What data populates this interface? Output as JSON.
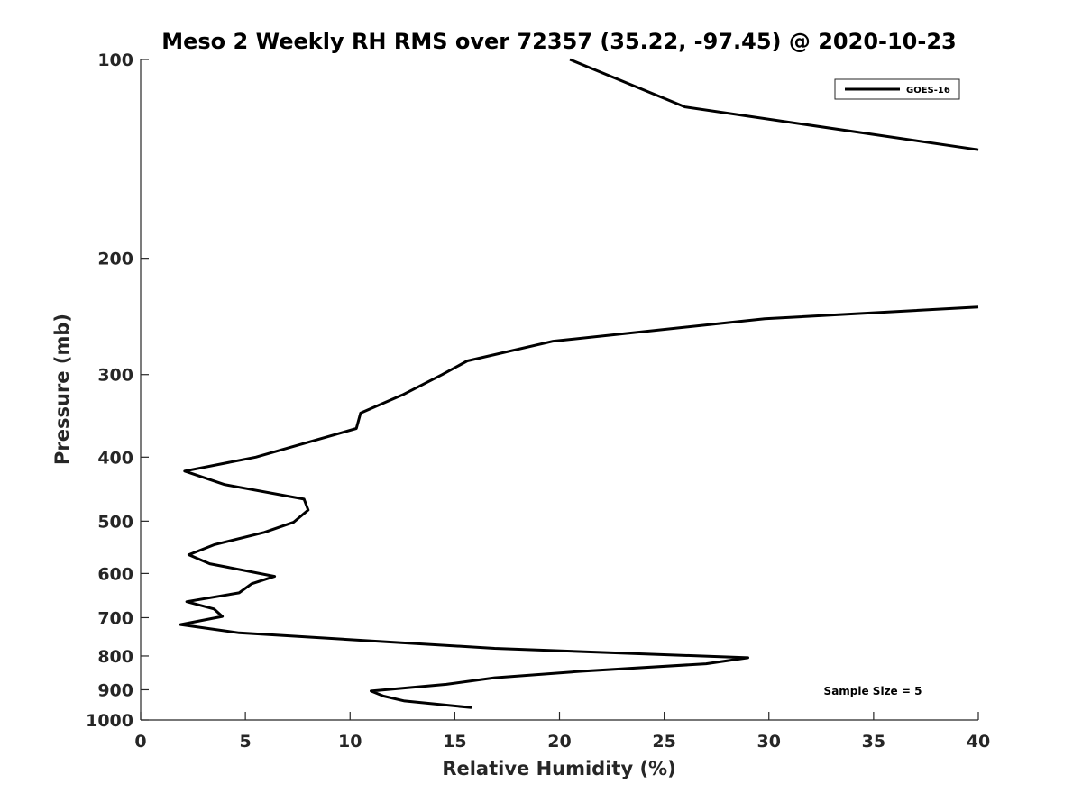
{
  "chart_data": {
    "type": "line",
    "title": "Meso 2 Weekly RH RMS over 72357 (35.22, -97.45) @ 2020-10-23",
    "xlabel": "Relative Humidity (%)",
    "ylabel": "Pressure (mb)",
    "xlim": [
      0,
      40
    ],
    "ylim": [
      100,
      1000
    ],
    "y_scale": "log",
    "y_reversed": true,
    "x_ticks": [
      0,
      5,
      10,
      15,
      20,
      25,
      30,
      35,
      40
    ],
    "y_ticks": [
      100,
      200,
      300,
      400,
      500,
      600,
      700,
      800,
      900,
      1000
    ],
    "grid": false,
    "legend_position": "top-right",
    "series": [
      {
        "name": "GOES-16",
        "color": "#000000",
        "segments": [
          [
            {
              "x": 20.5,
              "y": 100
            },
            {
              "x": 26.0,
              "y": 118
            },
            {
              "x": 40.0,
              "y": 137
            }
          ],
          [
            {
              "x": 40.0,
              "y": 237
            },
            {
              "x": 29.8,
              "y": 247
            },
            {
              "x": 19.7,
              "y": 267
            },
            {
              "x": 15.6,
              "y": 286
            },
            {
              "x": 14.4,
              "y": 300
            },
            {
              "x": 12.5,
              "y": 322
            },
            {
              "x": 10.5,
              "y": 343
            },
            {
              "x": 10.3,
              "y": 362
            },
            {
              "x": 5.5,
              "y": 400
            },
            {
              "x": 2.1,
              "y": 420
            },
            {
              "x": 4.0,
              "y": 440
            },
            {
              "x": 7.8,
              "y": 463
            },
            {
              "x": 8.0,
              "y": 481
            },
            {
              "x": 7.3,
              "y": 502
            },
            {
              "x": 5.9,
              "y": 520
            },
            {
              "x": 3.5,
              "y": 543
            },
            {
              "x": 2.3,
              "y": 562
            },
            {
              "x": 3.3,
              "y": 580
            },
            {
              "x": 6.4,
              "y": 606
            },
            {
              "x": 5.3,
              "y": 622
            },
            {
              "x": 4.7,
              "y": 642
            },
            {
              "x": 2.2,
              "y": 662
            },
            {
              "x": 3.5,
              "y": 679
            },
            {
              "x": 3.9,
              "y": 697
            },
            {
              "x": 1.9,
              "y": 717
            },
            {
              "x": 4.7,
              "y": 738
            },
            {
              "x": 16.9,
              "y": 779
            },
            {
              "x": 29.0,
              "y": 805
            },
            {
              "x": 27.0,
              "y": 822
            },
            {
              "x": 21.0,
              "y": 844
            },
            {
              "x": 16.9,
              "y": 863
            },
            {
              "x": 14.6,
              "y": 883
            },
            {
              "x": 11.0,
              "y": 904
            },
            {
              "x": 11.6,
              "y": 920
            },
            {
              "x": 12.6,
              "y": 936
            },
            {
              "x": 15.8,
              "y": 958
            }
          ]
        ]
      }
    ],
    "annotations": [
      "Sample Size = 5"
    ]
  }
}
